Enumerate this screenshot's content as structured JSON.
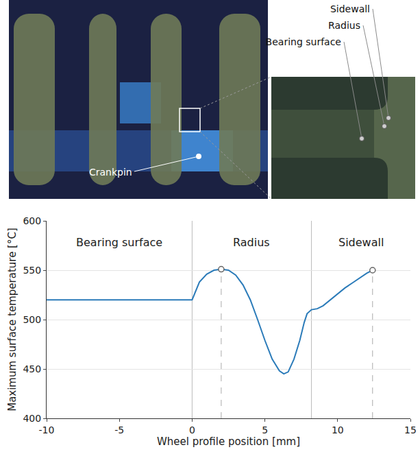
{
  "photo_labels": {
    "overview": [
      "Crankpin"
    ],
    "detail": [
      "Sidewall",
      "Radius",
      "Bearing surface"
    ]
  },
  "chart_data": {
    "type": "line",
    "x_label": "Wheel profile position [mm]",
    "y_label": "Maximum surface temperature [°C]",
    "x": [
      -10,
      0,
      0.5,
      1,
      1.5,
      2,
      2.5,
      3,
      3.5,
      4,
      4.5,
      5,
      5.5,
      6,
      6.3,
      6.6,
      7,
      7.4,
      7.7,
      7.9,
      8.2,
      8.6,
      9,
      9.5,
      10,
      10.5,
      11,
      11.5,
      12,
      12.4
    ],
    "values": [
      520,
      520,
      538,
      546,
      550,
      551,
      550,
      545,
      535,
      520,
      500,
      479,
      460,
      448,
      445,
      447,
      460,
      479,
      497,
      506,
      510,
      511,
      514,
      520,
      526,
      532,
      537,
      542,
      547,
      550
    ],
    "color": "#2b7bb9",
    "peaks": {
      "x": [
        2,
        12.4
      ],
      "values": [
        551,
        550
      ]
    },
    "regions": [
      {
        "label": "Bearing surface",
        "from": -10,
        "to": 0
      },
      {
        "label": "Radius",
        "from": 0,
        "to": 8.2
      },
      {
        "label": "Sidewall",
        "from": 8.2,
        "to": 15
      }
    ],
    "xlim": [
      -10,
      15
    ],
    "xticks": [
      -10,
      -5,
      0,
      5,
      10,
      15
    ],
    "ylim": [
      400,
      600
    ],
    "yticks": [
      400,
      450,
      500,
      550,
      600
    ],
    "grid": true
  }
}
